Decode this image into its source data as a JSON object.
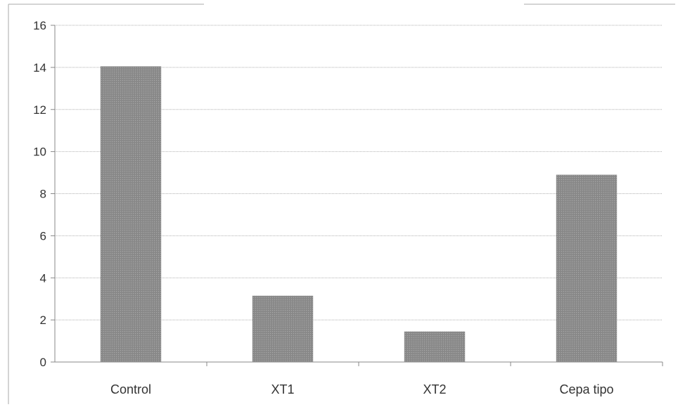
{
  "chart_data": {
    "type": "bar",
    "title": "",
    "xlabel": "",
    "ylabel": "",
    "categories": [
      "Control",
      "XT1",
      "XT2",
      "Cepa tipo"
    ],
    "values": [
      14.05,
      3.15,
      1.45,
      8.9
    ],
    "ylim": [
      0,
      16
    ],
    "yticks": [
      "0",
      "2",
      "4",
      "6",
      "8",
      "10",
      "12",
      "14",
      "16"
    ],
    "grid": true,
    "legend": "none",
    "colors": {
      "bar": "#8c8c8c",
      "bar_pattern": "#a8a8a8",
      "grid": "#b0b0b0",
      "axis": "#888888",
      "frame": "#aaaaaa"
    }
  }
}
